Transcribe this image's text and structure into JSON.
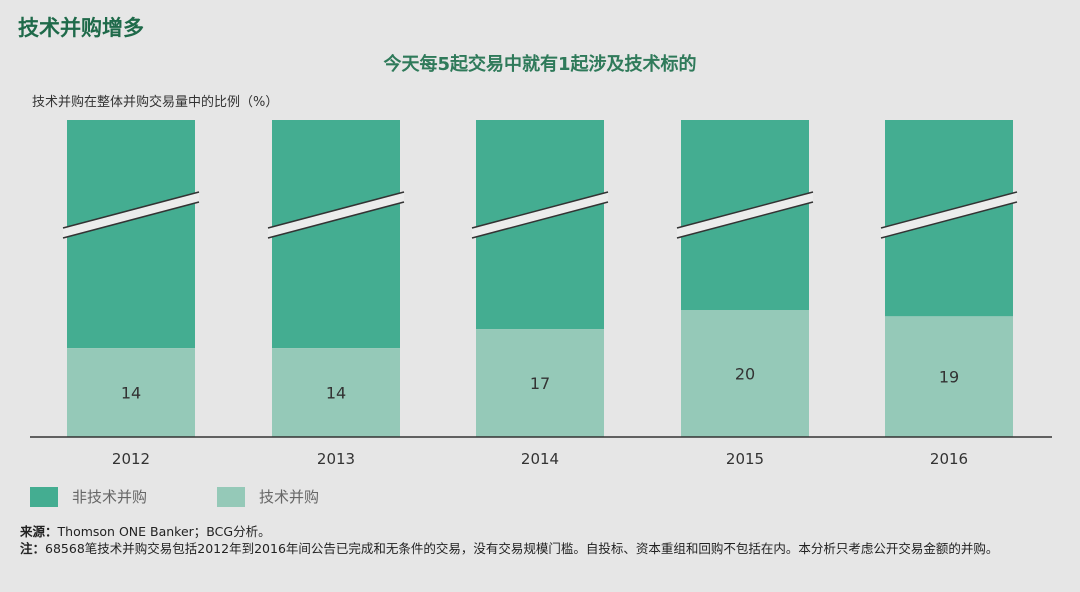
{
  "header": {
    "title": "技术并购增多"
  },
  "colors": {
    "non_tech": "#44ad91",
    "tech": "#95c9b8",
    "axis": "#333333",
    "background": "#e6e6e6"
  },
  "chart_data": {
    "type": "bar",
    "stacked": true,
    "axis_break": true,
    "title": "今天每5起交易中就有1起涉及技术标的",
    "ylabel": "技术并购在整体并购交易量中的比例（%）",
    "categories": [
      "2012",
      "2013",
      "2014",
      "2015",
      "2016"
    ],
    "series": [
      {
        "name": "技术并购",
        "values": [
          14,
          14,
          17,
          20,
          19
        ],
        "labels": [
          "14",
          "14",
          "17",
          "20",
          "19"
        ]
      },
      {
        "name": "非技术并购",
        "values": [
          86,
          86,
          83,
          80,
          81
        ]
      }
    ],
    "ylim": [
      0,
      100
    ],
    "legend_position": "bottom-left"
  },
  "legend": {
    "non_tech": "非技术并购",
    "tech": "技术并购"
  },
  "footer": {
    "source_label": "来源：",
    "source_text": "Thomson ONE Banker；BCG分析。",
    "note_label": "注：",
    "note_text": "68568笔技术并购交易包括2012年到2016年间公告已完成和无条件的交易，没有交易规模门槛。自投标、资本重组和回购不包括在内。本分析只考虑公开交易金额的并购。"
  }
}
